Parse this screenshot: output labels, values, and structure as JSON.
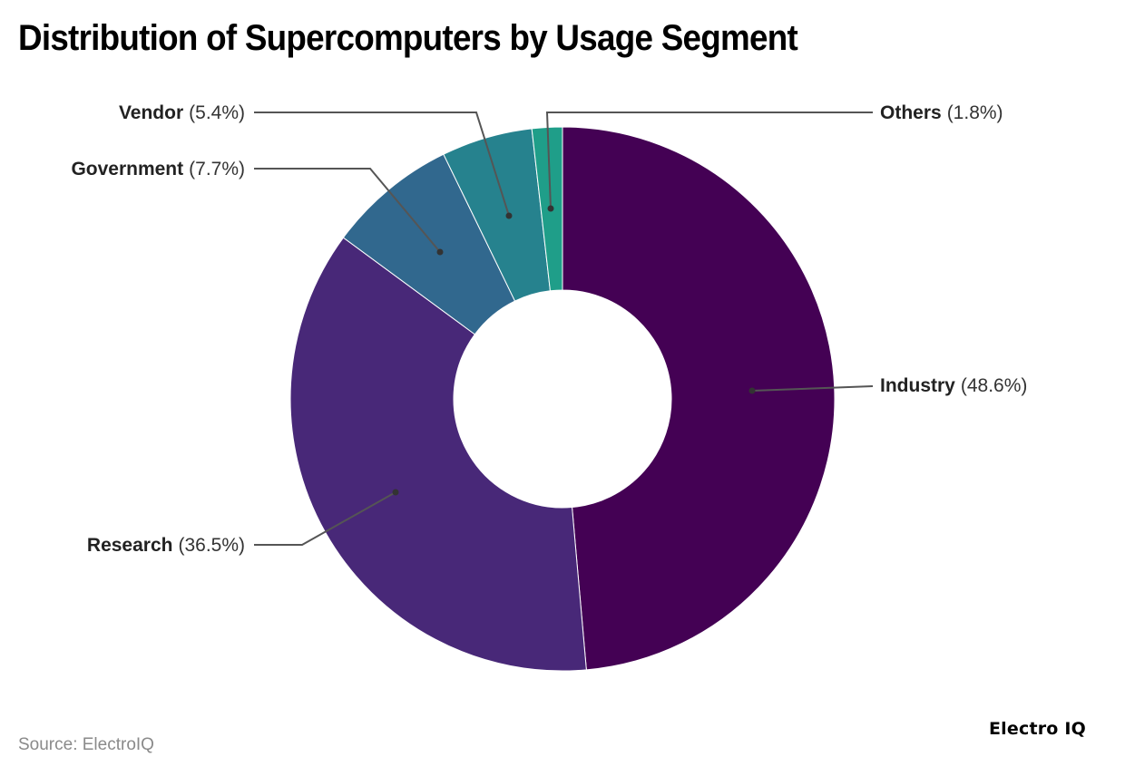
{
  "title": "Distribution of Supercomputers by Usage Segment",
  "source": "Source: ElectroIQ",
  "brand": "Electro IQ",
  "chart_data": {
    "type": "pie",
    "variant": "donut",
    "title": "Distribution of Supercomputers by Usage Segment",
    "categories": [
      "Industry",
      "Research",
      "Government",
      "Vendor",
      "Others"
    ],
    "values": [
      48.6,
      36.5,
      7.7,
      5.4,
      1.8
    ],
    "unit": "%",
    "colors": [
      "#440154",
      "#482878",
      "#31688e",
      "#26828e",
      "#1f9e89"
    ],
    "labels": [
      {
        "name": "Industry",
        "pct": "(48.6%)"
      },
      {
        "name": "Research",
        "pct": "(36.5%)"
      },
      {
        "name": "Government",
        "pct": "(7.7%)"
      },
      {
        "name": "Vendor",
        "pct": "(5.4%)"
      },
      {
        "name": "Others",
        "pct": "(1.8%)"
      }
    ],
    "start_angle": "top, clockwise",
    "legend": "none (direct labels with leader lines)"
  }
}
